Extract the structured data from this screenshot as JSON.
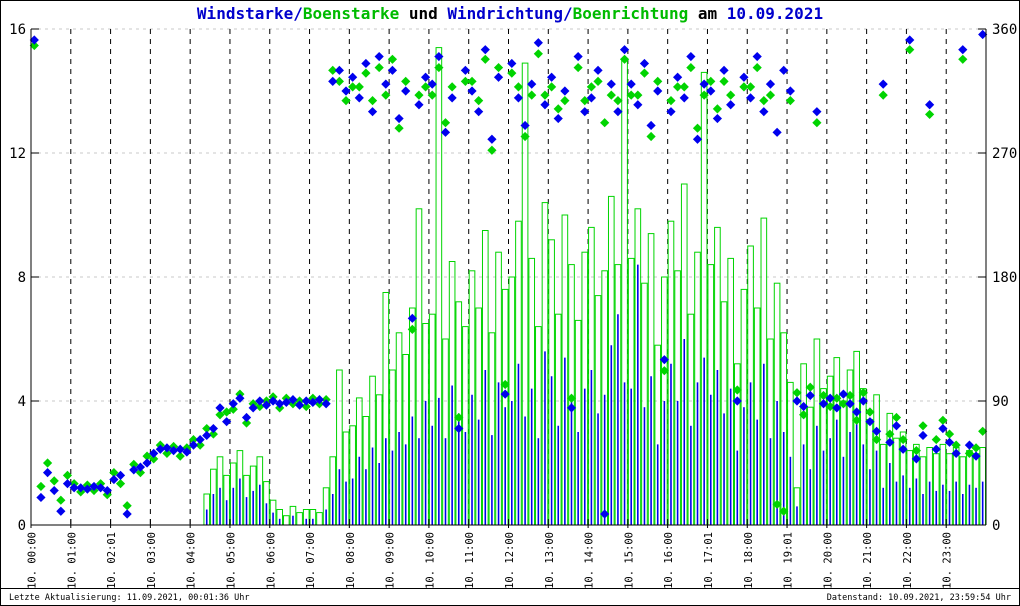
{
  "title": {
    "parts": [
      {
        "text": "Windstarke/",
        "color": "#0000cc"
      },
      {
        "text": "Boenstarke",
        "color": "#00bb00"
      },
      {
        "text": " und ",
        "color": "#000000"
      },
      {
        "text": "Windrichtung/",
        "color": "#0000cc"
      },
      {
        "text": "Boenrichtung",
        "color": "#00bb00"
      },
      {
        "text": " am ",
        "color": "#000000"
      },
      {
        "text": "10.09.2021",
        "color": "#0000cc"
      }
    ]
  },
  "footer": {
    "left": "Letzte Aktualisierung: 11.09.2021, 00:01:36 Uhr",
    "right": "Datenstand: 10.09.2021, 23:59:54 Uhr"
  },
  "colors": {
    "wind_blue": "#0000ee",
    "gust_green": "#00d400",
    "grid_vertical": "#000000",
    "grid_horizontal": "#c8c8c8",
    "axis": "#000000"
  },
  "x_axis": {
    "labels": [
      "10. 00:00",
      "10. 01:00",
      "10. 02:01",
      "10. 03:00",
      "10. 04:00",
      "10. 05:00",
      "10. 06:00",
      "10. 07:00",
      "10. 08:00",
      "10. 09:00",
      "10. 10:00",
      "10. 11:00",
      "10. 12:00",
      "10. 13:00",
      "10. 14:00",
      "10. 15:00",
      "10. 16:00",
      "10. 17:01",
      "10. 18:00",
      "10. 19:01",
      "10. 20:00",
      "10. 21:00",
      "10. 22:00",
      "10. 23:00"
    ]
  },
  "y_left": {
    "ticks": [
      0,
      4,
      8,
      12,
      16
    ],
    "range": [
      0,
      16
    ],
    "gridlines": [
      4,
      8,
      12,
      16
    ]
  },
  "y_right": {
    "ticks": [
      0,
      90,
      180,
      270,
      360
    ],
    "range": [
      0,
      360
    ]
  },
  "chart_data": {
    "type": "line",
    "title": "Windstarke/Boenstarke und Windrichtung/Boenrichtung am 10.09.2021",
    "x": {
      "start": "10.09.2021 00:00",
      "end": "10.09.2021 24:00",
      "sample_interval_minutes": 10
    },
    "y_left_range": [
      0,
      16
    ],
    "y_right_range": [
      0,
      360
    ],
    "grid": true,
    "legend": "none",
    "series": [
      {
        "name": "Windstarke",
        "axis": "left",
        "style": "impulses",
        "color": "#0000ee",
        "values": [
          0,
          0,
          0,
          0,
          0,
          0,
          0,
          0,
          0,
          0,
          0,
          0,
          0,
          0,
          0,
          0,
          0,
          0,
          0,
          0,
          0,
          0,
          0,
          0,
          0,
          0,
          0.5,
          1,
          1.2,
          0.8,
          1.2,
          1.5,
          0.9,
          1.1,
          1.3,
          0.7,
          0.4,
          0.2,
          0,
          0.3,
          0,
          0.2,
          0.2,
          0,
          0.5,
          1,
          1.8,
          1.4,
          1.5,
          2.2,
          1.8,
          2.5,
          2,
          2.8,
          2.4,
          3,
          2.6,
          3.5,
          2.8,
          4,
          3.2,
          4.1,
          2.8,
          4.5,
          3.6,
          3,
          4.2,
          3.4,
          5,
          2.9,
          4.6,
          3.8,
          4,
          5.2,
          3.5,
          4.4,
          2.8,
          5.6,
          4.8,
          3.2,
          5.4,
          4,
          3,
          4.4,
          5,
          3.6,
          4.2,
          5.8,
          6.8,
          4.6,
          4.4,
          8.4,
          3.8,
          4.8,
          2.6,
          4,
          5.2,
          4,
          6,
          3.2,
          4.6,
          5.4,
          4.2,
          5,
          3.6,
          4.4,
          2.4,
          3.8,
          4.6,
          3.4,
          5.2,
          2.8,
          4,
          3,
          2.2,
          0.6,
          2.6,
          1.8,
          3.2,
          2.4,
          2.8,
          3.4,
          2.2,
          3,
          3.6,
          2.6,
          1.8,
          2.4,
          1.2,
          2,
          1.4,
          1.6,
          1.2,
          1.5,
          1,
          1.4,
          1.1,
          1.3,
          1.1,
          1.4,
          1,
          1.3,
          1.2,
          1.4
        ]
      },
      {
        "name": "Boenstarke",
        "axis": "left",
        "style": "boxes",
        "color": "#00d400",
        "values": [
          0,
          0,
          0,
          0,
          0,
          0,
          0,
          0,
          0,
          0,
          0,
          0,
          0,
          0,
          0,
          0,
          0,
          0,
          0,
          0,
          0,
          0,
          0,
          0,
          0,
          0,
          1,
          1.8,
          2.2,
          1.6,
          2,
          2.4,
          1.6,
          1.9,
          2.2,
          1.4,
          0.8,
          0.5,
          0.3,
          0.6,
          0.4,
          0.5,
          0.5,
          0.4,
          1.2,
          2.2,
          5,
          3,
          3.2,
          4.1,
          3.5,
          4.8,
          4.2,
          7.5,
          5,
          6.2,
          5.5,
          7,
          10.2,
          6.5,
          6.8,
          15.4,
          6,
          8.5,
          7.2,
          6.4,
          8.2,
          7,
          9.5,
          6.2,
          8.8,
          7.6,
          8,
          9.8,
          14.9,
          8.6,
          6.4,
          10.4,
          9.2,
          6.8,
          10,
          8.4,
          6.6,
          8.8,
          9.6,
          7.4,
          8.2,
          10.6,
          8.4,
          15,
          8.6,
          10.2,
          7.8,
          9.4,
          5.8,
          8,
          9.8,
          8.2,
          11,
          6.8,
          8.8,
          14.6,
          8.4,
          9.6,
          7.2,
          8.6,
          5.2,
          7.6,
          9,
          7,
          9.9,
          6,
          7.8,
          6.2,
          4.6,
          1.2,
          5.2,
          3.8,
          6,
          4.4,
          4.8,
          5.4,
          4,
          5,
          5.6,
          4.4,
          3.4,
          4.2,
          2.6,
          3.6,
          2.8,
          3,
          2.4,
          2.6,
          2.2,
          2.5,
          2.3,
          2.6,
          2.3,
          2.5,
          2.2,
          2.4,
          2.3,
          2.5
        ]
      },
      {
        "name": "Windrichtung",
        "axis": "right",
        "style": "points",
        "color": "#0000ee",
        "values": [
          352,
          20,
          38,
          25,
          10,
          30,
          27,
          27,
          26,
          28,
          27,
          25,
          33,
          36,
          8,
          40,
          42,
          45,
          52,
          55,
          56,
          54,
          55,
          53,
          58,
          62,
          65,
          70,
          85,
          75,
          88,
          92,
          78,
          85,
          90,
          87,
          90,
          88,
          89,
          91,
          87,
          90,
          89,
          91,
          88,
          322,
          330,
          315,
          325,
          310,
          335,
          300,
          340,
          320,
          330,
          295,
          315,
          150,
          305,
          325,
          320,
          340,
          285,
          310,
          70,
          330,
          315,
          300,
          345,
          280,
          325,
          95,
          335,
          310,
          290,
          320,
          350,
          305,
          325,
          295,
          315,
          85,
          340,
          300,
          310,
          330,
          8,
          320,
          300,
          345,
          320,
          305,
          335,
          290,
          315,
          120,
          300,
          325,
          310,
          340,
          280,
          320,
          315,
          295,
          330,
          305,
          90,
          325,
          310,
          340,
          300,
          320,
          285,
          330,
          315,
          90,
          86,
          94,
          300,
          88,
          92,
          85,
          95,
          88,
          82,
          90,
          75,
          68,
          320,
          60,
          72,
          55,
          352,
          48,
          65,
          305,
          55,
          70,
          60,
          52,
          345,
          58,
          50,
          356
        ]
      },
      {
        "name": "Boenrichtung",
        "axis": "right",
        "style": "points",
        "color": "#00d400",
        "values": [
          348,
          28,
          45,
          32,
          18,
          36,
          30,
          24,
          29,
          25,
          30,
          22,
          38,
          30,
          14,
          44,
          38,
          50,
          48,
          58,
          52,
          57,
          50,
          56,
          62,
          58,
          70,
          66,
          80,
          82,
          84,
          95,
          74,
          88,
          86,
          90,
          93,
          85,
          92,
          88,
          90,
          86,
          92,
          88,
          91,
          330,
          322,
          308,
          318,
          318,
          328,
          308,
          332,
          312,
          338,
          288,
          322,
          142,
          312,
          318,
          312,
          332,
          292,
          318,
          78,
          322,
          322,
          308,
          338,
          272,
          332,
          102,
          328,
          318,
          282,
          312,
          342,
          312,
          318,
          302,
          308,
          92,
          332,
          308,
          318,
          322,
          292,
          312,
          308,
          338,
          312,
          312,
          328,
          282,
          322,
          112,
          308,
          318,
          318,
          332,
          288,
          312,
          322,
          302,
          322,
          312,
          98,
          318,
          318,
          332,
          308,
          312,
          15,
          10,
          308,
          96,
          80,
          100,
          292,
          94,
          86,
          92,
          88,
          94,
          76,
          96,
          82,
          62,
          312,
          66,
          78,
          62,
          345,
          54,
          72,
          298,
          62,
          76,
          66,
          58,
          338,
          52,
          56,
          68
        ]
      }
    ]
  }
}
